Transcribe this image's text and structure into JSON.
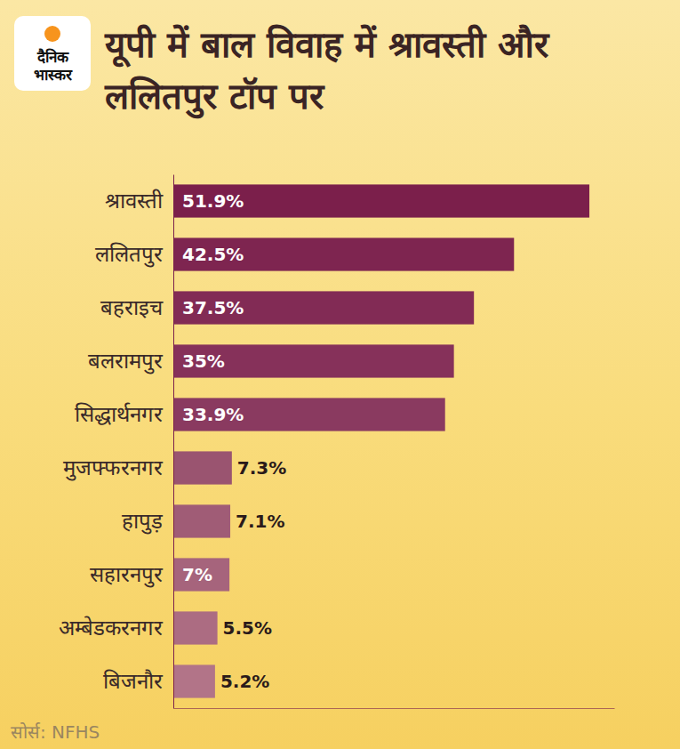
{
  "chart_data": {
    "type": "bar",
    "orientation": "horizontal",
    "title": "यूपी में बाल विवाह में श्रावस्ती और ललितपुर टॉप पर",
    "annotations": [
      "दैनिक भास्कर",
      "सोर्स: NFHS"
    ],
    "categories": [
      "श्रावस्ती",
      "ललितपुर",
      "बहराइच",
      "बलरामपुर",
      "सिद्धार्थनगर",
      "मुजफ्फरनगर",
      "हापुड़",
      "सहारनपुर",
      "अम्बेडकरनगर",
      "बिजनौर"
    ],
    "values": [
      51.9,
      42.5,
      37.5,
      35,
      33.9,
      7.3,
      7.1,
      7,
      5.5,
      5.2
    ],
    "value_labels": [
      "51.9%",
      "42.5%",
      "37.5%",
      "35%",
      "33.9%",
      "7.3%",
      "7.1%",
      "7%",
      "5.5%",
      "5.2%"
    ],
    "colors": [
      "#7b1f4b",
      "#7e2550",
      "#822b55",
      "#86315a",
      "#8a3a60",
      "#9a5470",
      "#a05c76",
      "#a6647c",
      "#ac6c82",
      "#b27488"
    ],
    "xlim": [
      0,
      55
    ],
    "xticks": [],
    "data_labels": true,
    "tick_labels": "y",
    "grid": false
  }
}
